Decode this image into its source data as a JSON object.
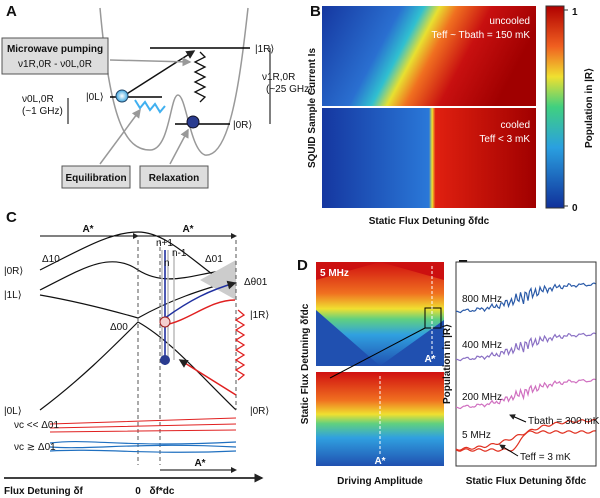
{
  "panels": {
    "a": {
      "label": "A",
      "pump_title": "Microwave pumping",
      "pump_freq": "ν1R,0R - ν0L,0R",
      "state_1r": "|1R⟩",
      "state_0l": "|0L⟩",
      "state_0r": "|0R⟩",
      "nu_left": "ν0L,0R",
      "nu_left_note": "(~1 GHz)",
      "nu_right": "ν1R,0R",
      "nu_right_note": "(~25 GHz)",
      "equilibration": "Equilibration",
      "relaxation": "Relaxation"
    },
    "b": {
      "label": "B",
      "top_title": "uncooled",
      "top_temp": "Teff ~ Tbath = 150 mK",
      "bottom_title": "cooled",
      "bottom_temp": "Teff < 3 mK",
      "ylabel": "SQUID Sample Current Is",
      "xlabel": "Static Flux Detuning δfdc",
      "colorbar_label": "Population in |R⟩",
      "colorbar_ticks": [
        1,
        0
      ]
    },
    "c": {
      "label": "C",
      "a_left": "A*",
      "a_right": "A*",
      "s0r": "|0R⟩",
      "s1l": "|1L⟩",
      "s0l": "|0L⟩",
      "d10": "Δ10",
      "d01": "Δ01",
      "d00": "Δ00",
      "dtheta": "Δθ01",
      "s1r": "|1R⟩",
      "s0r_right": "|0R⟩",
      "np1": "n+1",
      "n": "n",
      "nm1": "n-1",
      "slow": "νc << Δ01",
      "fast": "νc ≳ Δ01",
      "a_bottom": "A*",
      "xlabel": "Flux Detuning δf",
      "zero": "0",
      "fdc": "δf*dc"
    },
    "d": {
      "label": "D",
      "freq": "5 MHz",
      "a_top": "A*",
      "a_bottom": "A*",
      "ylabel": "Static Flux Detuning δfdc",
      "xlabel": "Driving Amplitude"
    },
    "e": {
      "label": "E",
      "f800": "800 MHz",
      "f400": "400 MHz",
      "f200": "200 MHz",
      "f5": "5 MHz",
      "tbath": "Tbath = 300 mK",
      "teff": "Teff = 3 mK",
      "ylabel": "Population in |R⟩",
      "xlabel": "Static Flux Detuning δfdc"
    }
  }
}
